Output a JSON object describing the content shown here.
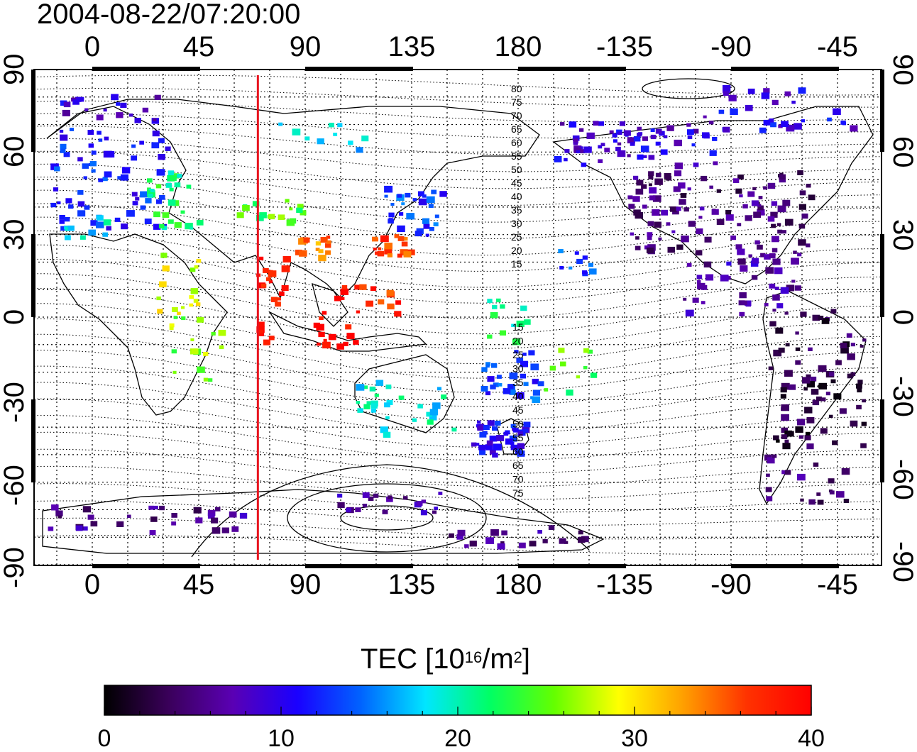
{
  "title": "2004-08-22/07:20:00",
  "map": {
    "top_axis_labels": [
      "0",
      "45",
      "90",
      "135",
      "180",
      "-135",
      "-90",
      "-45"
    ],
    "bottom_axis_labels": [
      "0",
      "45",
      "90",
      "135",
      "180",
      "-135",
      "-90",
      "-45"
    ],
    "left_axis_labels": [
      "90",
      "60",
      "30",
      "0",
      "-30",
      "-60",
      "-90"
    ],
    "right_axis_labels": [
      "90",
      "60",
      "30",
      "0",
      "-30",
      "-60",
      "-90"
    ],
    "contour_labels_upper": [
      "80",
      "75",
      "70",
      "65",
      "60",
      "55",
      "50",
      "45",
      "40",
      "35",
      "30",
      "25",
      "20",
      "15"
    ],
    "contour_labels_lower": [
      "15",
      "20",
      "25",
      "30",
      "35",
      "40",
      "45",
      "50",
      "55",
      "60",
      "65",
      "70",
      "75"
    ],
    "marker_line_longitude": 70,
    "marker_line_color": "#e8141e",
    "overlay": "magnetic latitude contours"
  },
  "colorbar": {
    "label_prefix": "TEC  [10",
    "label_exp1": "16",
    "label_mid": "/m",
    "label_exp2": "2",
    "label_suffix": "]",
    "ticks": [
      "0",
      "10",
      "20",
      "30",
      "40"
    ],
    "range": [
      0,
      40
    ],
    "colors": [
      "#000000",
      "#3a005a",
      "#5a00b4",
      "#1a00ff",
      "#0064ff",
      "#00e6ff",
      "#00ff64",
      "#64ff00",
      "#ffff00",
      "#ffa000",
      "#ff3200",
      "#ff0000"
    ]
  }
}
